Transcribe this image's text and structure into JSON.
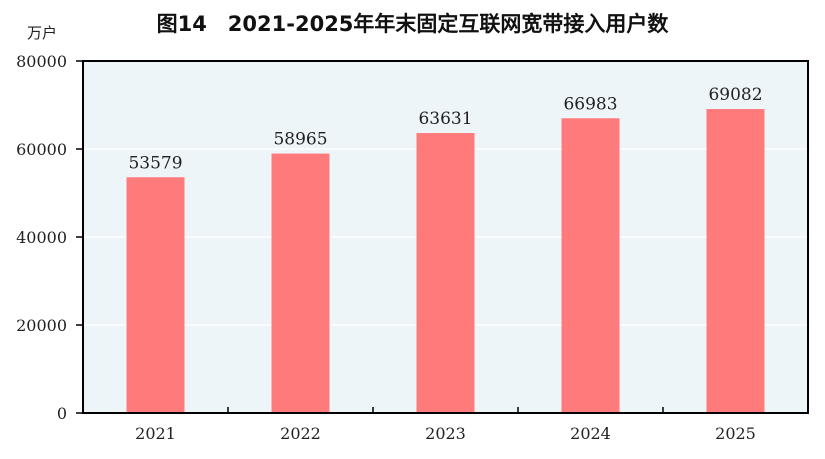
{
  "chart_data": {
    "type": "bar",
    "title": "图14　2021-2025年年末固定互联网宽带接入用户数",
    "ylabel": "万户",
    "xlabel": "",
    "categories": [
      "2021",
      "2022",
      "2023",
      "2024",
      "2025"
    ],
    "values": [
      53579,
      58965,
      63631,
      66983,
      69082
    ],
    "ylim": [
      0,
      80000
    ],
    "yticks": [
      0,
      20000,
      40000,
      60000,
      80000
    ],
    "grid": true,
    "data_labels": true,
    "colors": {
      "bar": "#ff7b7b",
      "plot_background": "#edf5f8",
      "grid": "#ffffff"
    }
  }
}
